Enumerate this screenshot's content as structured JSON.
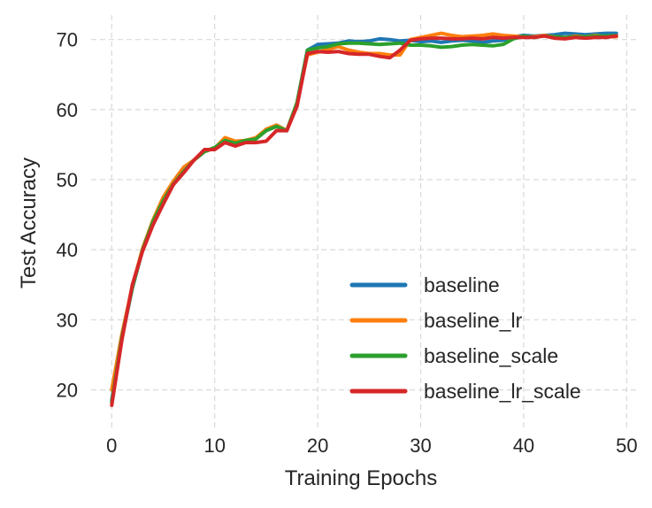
{
  "chart_data": {
    "type": "line",
    "title": "",
    "xlabel": "Training Epochs",
    "ylabel": "Test Accuracy",
    "xlim": [
      -2,
      51
    ],
    "ylim": [
      14.5,
      73.5
    ],
    "xticks": [
      0,
      10,
      20,
      30,
      40,
      50
    ],
    "yticks": [
      20,
      30,
      40,
      50,
      60,
      70
    ],
    "grid": true,
    "legend_position": "lower-right",
    "x": [
      0,
      1,
      2,
      3,
      4,
      5,
      6,
      7,
      8,
      9,
      10,
      11,
      12,
      13,
      14,
      15,
      16,
      17,
      18,
      19,
      20,
      21,
      22,
      23,
      24,
      25,
      26,
      27,
      28,
      29,
      30,
      31,
      32,
      33,
      34,
      35,
      36,
      37,
      38,
      39,
      40,
      41,
      42,
      43,
      44,
      45,
      46,
      47,
      48,
      49
    ],
    "series": [
      {
        "name": "baseline",
        "color": "#1f77b4",
        "values": [
          18.5,
          27.5,
          34.5,
          40.0,
          44.0,
          47.0,
          49.5,
          51.3,
          52.8,
          54.0,
          54.5,
          55.8,
          55.2,
          55.6,
          55.9,
          57.0,
          57.8,
          57.0,
          61.0,
          68.5,
          69.3,
          69.4,
          69.5,
          69.8,
          69.7,
          69.8,
          70.1,
          70.0,
          69.8,
          69.9,
          69.7,
          69.8,
          69.6,
          69.8,
          69.9,
          69.8,
          69.6,
          69.8,
          69.9,
          70.4,
          70.6,
          70.5,
          70.6,
          70.7,
          70.9,
          70.8,
          70.7,
          70.8,
          70.9,
          70.9
        ]
      },
      {
        "name": "baseline_lr",
        "color": "#ff7f0e",
        "values": [
          20.0,
          28.0,
          34.8,
          40.2,
          44.2,
          47.5,
          49.8,
          51.8,
          52.8,
          54.0,
          54.5,
          56.0,
          55.5,
          55.6,
          56.0,
          57.2,
          57.8,
          57.0,
          61.0,
          67.8,
          68.2,
          68.6,
          69.0,
          68.5,
          68.2,
          68.0,
          68.0,
          67.8,
          67.8,
          70.0,
          70.3,
          70.6,
          70.9,
          70.6,
          70.4,
          70.5,
          70.6,
          70.8,
          70.6,
          70.5,
          70.4,
          70.4,
          70.6,
          70.4,
          70.3,
          70.5,
          70.4,
          70.6,
          70.4,
          70.4
        ]
      },
      {
        "name": "baseline_scale",
        "color": "#2ca02c",
        "values": [
          18.2,
          27.6,
          34.6,
          40.0,
          44.0,
          47.0,
          49.4,
          51.2,
          52.8,
          54.0,
          54.6,
          55.6,
          55.2,
          55.6,
          55.8,
          57.0,
          57.6,
          57.0,
          61.0,
          68.5,
          68.8,
          69.0,
          69.4,
          69.5,
          69.5,
          69.4,
          69.3,
          69.4,
          69.5,
          69.2,
          69.2,
          69.1,
          68.9,
          69.0,
          69.2,
          69.3,
          69.2,
          69.1,
          69.3,
          70.1,
          70.5,
          70.3,
          70.5,
          70.4,
          70.3,
          70.4,
          70.4,
          70.5,
          70.5,
          70.6
        ]
      },
      {
        "name": "baseline_lr_scale",
        "color": "#d62728",
        "values": [
          17.8,
          27.2,
          35.0,
          39.8,
          43.5,
          46.5,
          49.3,
          51.0,
          52.8,
          54.3,
          54.3,
          55.3,
          54.8,
          55.3,
          55.3,
          55.5,
          57.0,
          57.0,
          60.5,
          68.0,
          68.3,
          68.2,
          68.3,
          68.0,
          67.9,
          67.9,
          67.6,
          67.4,
          68.5,
          69.9,
          70.1,
          70.2,
          70.2,
          70.1,
          70.1,
          70.2,
          70.1,
          70.3,
          70.2,
          70.3,
          70.3,
          70.3,
          70.5,
          70.2,
          70.1,
          70.3,
          70.2,
          70.3,
          70.3,
          70.5
        ]
      }
    ]
  }
}
